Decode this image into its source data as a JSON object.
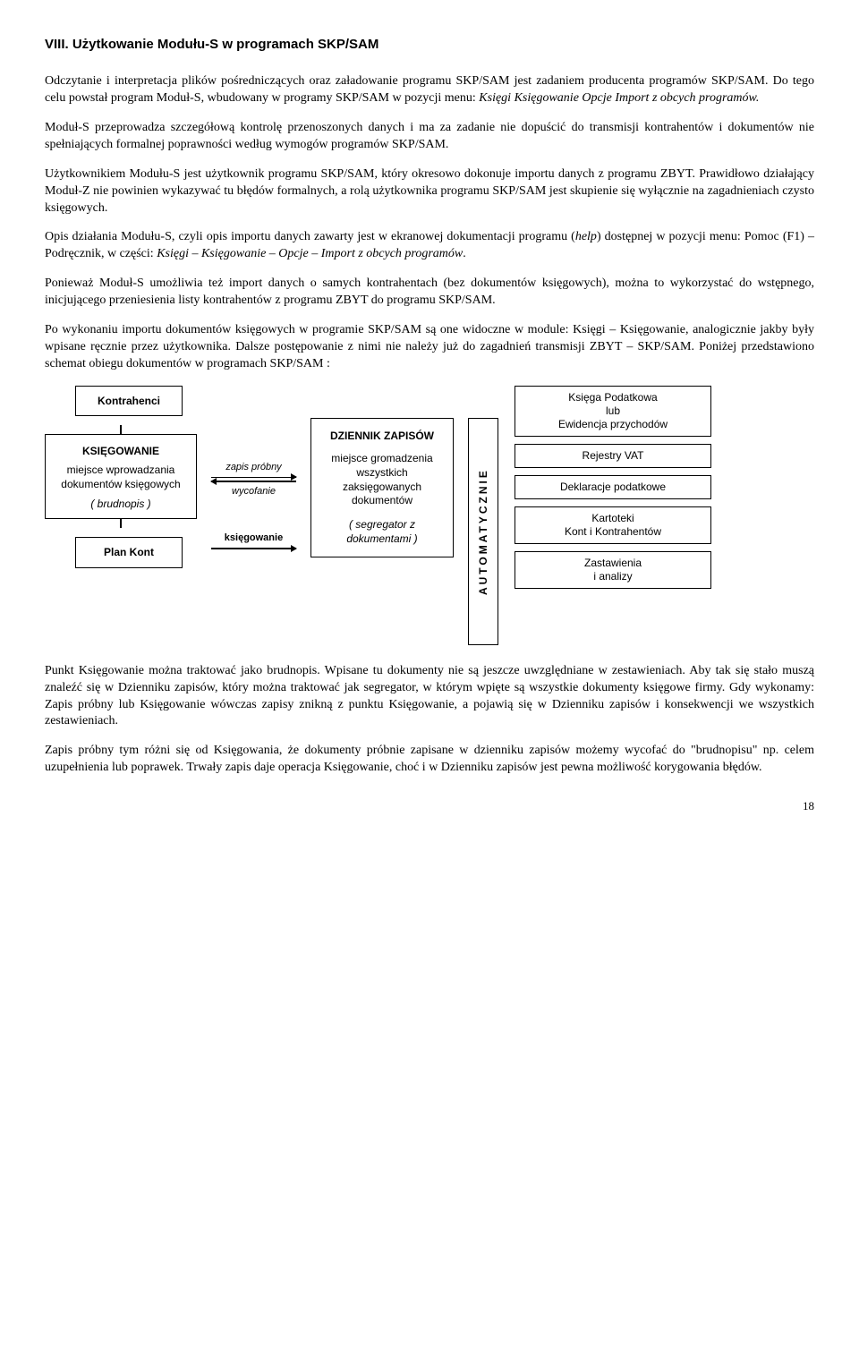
{
  "heading": "VIII.   Użytkowanie Modułu-S w programach SKP/SAM",
  "paragraphs": {
    "p1a": "Odczytanie i interpretacja plików pośredniczących oraz załadowanie programu SKP/SAM jest zadaniem producenta programów SKP/SAM. Do tego celu powstał program Moduł-S, wbudowany w programy SKP/SAM w pozycji menu: ",
    "p1b": "Księgi Księgowanie Opcje Import z obcych programów.",
    "p2": "Moduł-S przeprowadza szczegółową kontrolę przenoszonych danych i ma za zadanie nie dopuścić do transmisji kontrahentów i dokumentów nie spełniających formalnej poprawności według wymogów programów SKP/SAM.",
    "p3": "Użytkownikiem Modułu-S jest użytkownik programu SKP/SAM, który okresowo dokonuje importu danych z programu ZBYT. Prawidłowo działający Moduł-Z nie powinien wykazywać tu błędów formalnych, a rolą użytkownika programu SKP/SAM jest skupienie się wyłącznie na zagadnieniach czysto księgowych.",
    "p4a": "Opis działania Modułu-S, czyli opis importu danych zawarty jest w ekranowej dokumentacji programu (",
    "p4b": "help",
    "p4c": ") dostępnej w pozycji menu: Pomoc (F1) – Podręcznik, w części: ",
    "p4d": "Księgi – Księgowanie – Opcje – Import z obcych programów",
    "p4e": ".",
    "p5": "Ponieważ Moduł-S umożliwia też import danych o samych kontrahentach (bez dokumentów księgowych), można to wykorzystać do wstępnego, inicjującego przeniesienia listy kontrahentów z programu ZBYT do programu SKP/SAM.",
    "p6": "Po wykonaniu importu dokumentów księgowych w programie SKP/SAM są one widoczne w module: Księgi – Księgowanie, analogicznie jakby były wpisane ręcznie przez użytkownika. Dalsze postępowanie z nimi nie należy już do zagadnień transmisji ZBYT – SKP/SAM. Poniżej przedstawiono schemat obiegu dokumentów w programach SKP/SAM :",
    "p7": "Punkt Księgowanie można traktować jako brudnopis. Wpisane tu dokumenty nie są jeszcze uwzględniane w zestawieniach. Aby tak się stało muszą znaleźć się w Dzienniku zapisów, który można traktować jak segregator, w którym wpięte są wszystkie dokumenty księgowe firmy. Gdy wykonamy: Zapis próbny lub Księgowanie wówczas zapisy znikną z punktu Księgowanie, a pojawią się w Dzienniku zapisów i konsekwencji we wszystkich zestawieniach.",
    "p8": "Zapis próbny tym różni się od Księgowania, że dokumenty próbnie zapisane w dzienniku zapisów możemy wycofać do \"brudnopisu\" np. celem uzupełnienia lub poprawek. Trwały zapis daje operacja Księgowanie, choć i w Dzienniku zapisów jest pewna możliwość korygowania błędów."
  },
  "diagram": {
    "kontrahenci": "Kontrahenci",
    "ksiegowanie_hdr": "KSIĘGOWANIE",
    "ksiegowanie_mid": "miejsce wprowadzania dokumentów księgowych",
    "ksiegowanie_ital": "( brudnopis )",
    "plankont": "Plan Kont",
    "arrow1a": "zapis próbny",
    "arrow1b": "wycofanie",
    "arrow2": "księgowanie",
    "dziennik_hdr": "DZIENNIK ZAPISÓW",
    "dziennik_mid": "miejsce gromadzenia wszystkich zaksięgowanych dokumentów",
    "dziennik_ital": "( segregator z dokumentami )",
    "auto": "AUTOMATYCZNIE",
    "r1": "Księga Podatkowa\nlub\nEwidencja przychodów",
    "r2": "Rejestry VAT",
    "r3": "Deklaracje podatkowe",
    "r4": "Kartoteki\nKont i Kontrahentów",
    "r5": "Zastawienia\ni analizy"
  },
  "pagenum": "18"
}
